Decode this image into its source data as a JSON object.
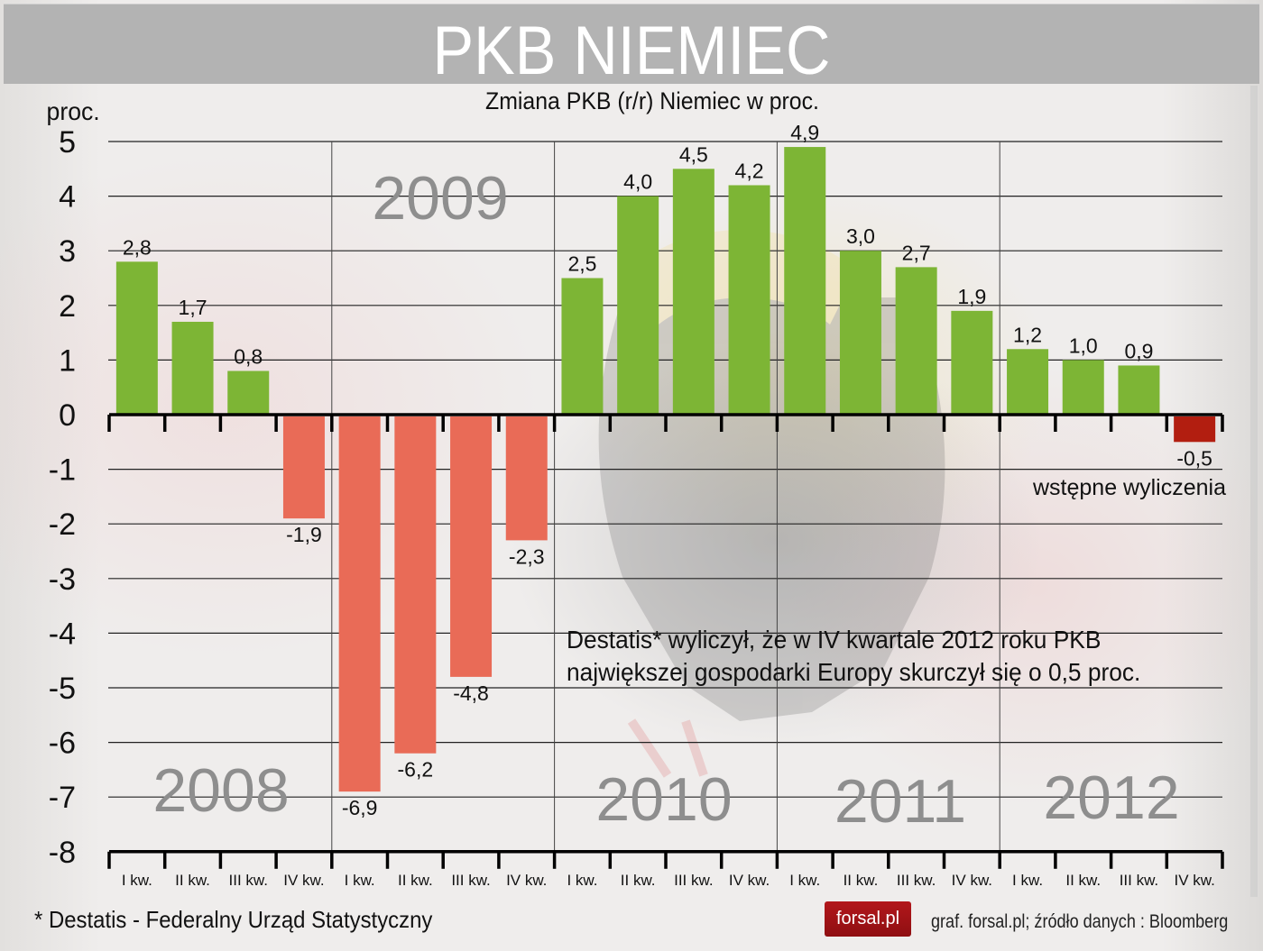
{
  "header": {
    "title": "PKB NIEMIEC"
  },
  "chart_data": {
    "type": "bar",
    "title": "Zmiana PKB (r/r) Niemiec w proc.",
    "xlabel": "",
    "ylabel": "proc.",
    "ylim": [
      -8,
      5
    ],
    "yticks": [
      5,
      4,
      3,
      2,
      1,
      0,
      -1,
      -2,
      -3,
      -4,
      -5,
      -6,
      -7,
      -8
    ],
    "grid": true,
    "years": [
      "2008",
      "2009",
      "2010",
      "2011",
      "2012"
    ],
    "categories": [
      "I kw.",
      "II kw.",
      "III kw.",
      "IV kw.",
      "I kw.",
      "II kw.",
      "III kw.",
      "IV kw.",
      "I kw.",
      "II kw.",
      "III kw.",
      "IV kw.",
      "I kw.",
      "II kw.",
      "III kw.",
      "IV kw.",
      "I kw.",
      "II kw.",
      "III kw.",
      "IV kw."
    ],
    "values": [
      2.8,
      1.7,
      0.8,
      -1.9,
      -6.9,
      -6.2,
      -4.8,
      -2.3,
      2.5,
      4.0,
      4.5,
      4.2,
      4.9,
      3.0,
      2.7,
      1.9,
      1.2,
      1.0,
      0.9,
      -0.5
    ],
    "value_labels": [
      "2,8",
      "1,7",
      "0,8",
      "-1,9",
      "-6,9",
      "-6,2",
      "-4,8",
      "-2,3",
      "2,5",
      "4,0",
      "4,5",
      "4,2",
      "4,9",
      "3,0",
      "2,7",
      "1,9",
      "1,2",
      "1,0",
      "0,9",
      "-0,5"
    ],
    "preliminary_index": 19,
    "colors": {
      "positive": "#7db535",
      "negative": "#e96b57",
      "preliminary": "#b21e10",
      "year_label": "#8e8e8e"
    },
    "annotations": [
      "Destatis* wyliczył, że w IV kwartale 2012 roku PKB największej gospodarki Europy skurczył się o 0,5 proc.",
      "wstępne wyliczenia"
    ]
  },
  "labels": {
    "y_unit": "proc.",
    "annotation_line1": "Destatis* wyliczył, że w IV kwartale 2012 roku PKB",
    "annotation_line2": "największej gospodarki Europy skurczył się o 0,5 proc.",
    "preliminary": "wstępne wyliczenia"
  },
  "footer": {
    "footnote": "* Destatis - Federalny Urząd Statystyczny",
    "logo": "forsal.pl",
    "source": "graf. forsal.pl; źródło danych : Bloomberg"
  }
}
